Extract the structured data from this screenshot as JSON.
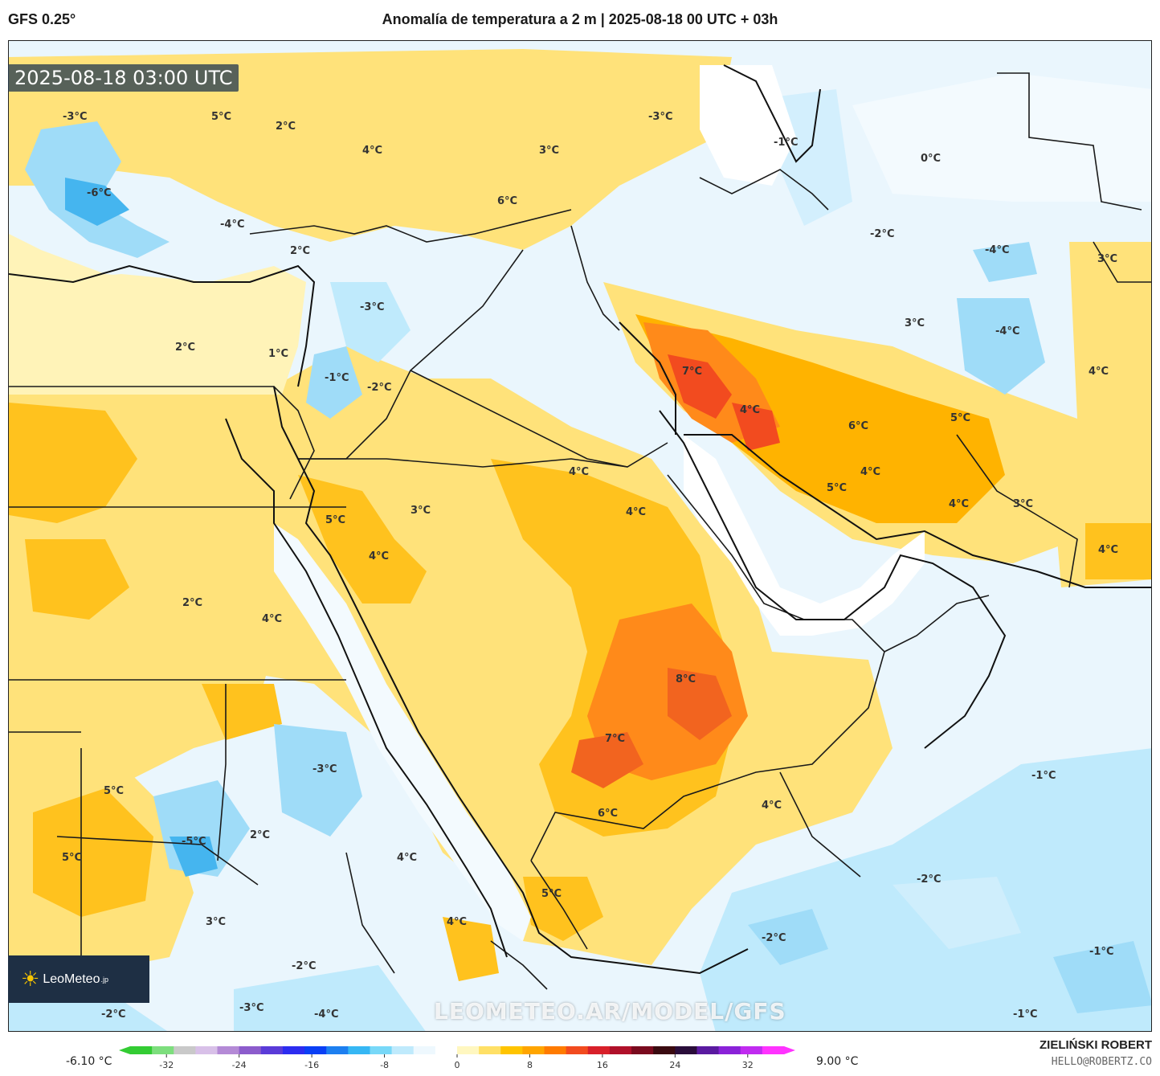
{
  "header": {
    "model": "GFS 0.25°",
    "title": "Anomalía de temperatura a 2 m | 2025-08-18 00 UTC + 03h"
  },
  "valid_time": "2025-08-18 03:00 UTC",
  "logo_text": "LeoMeteo",
  "logo_suffix": ".jp",
  "watermark": "LEOMETEO.AR/MODEL/GFS",
  "legend": {
    "min_label": "-6.10 °C",
    "max_label": "9.00 °C",
    "ticks": [
      "-32",
      "-24",
      "-16",
      "-8",
      "0",
      "8",
      "16",
      "24",
      "32"
    ],
    "tick_values": [
      -32,
      -24,
      -16,
      -8,
      0,
      8,
      16,
      24,
      32
    ],
    "range": [
      -36,
      36
    ],
    "colors": [
      "#33cc33",
      "#7dde7d",
      "#c9c9c9",
      "#d8c0e8",
      "#b48ad6",
      "#8c5ccc",
      "#5a3bd8",
      "#2c2cf0",
      "#0a3ff5",
      "#1d7ff0",
      "#36b7f4",
      "#78d8f8",
      "#bfeafc",
      "#eef8fe",
      "#ffffff",
      "#fff7c0",
      "#ffe066",
      "#ffc400",
      "#ffa500",
      "#ff7b00",
      "#f24b1f",
      "#d8202a",
      "#b0102a",
      "#7a0a1e",
      "#3a0a10",
      "#2a0d3a",
      "#5a1aa0",
      "#8a22d8",
      "#c02bf0",
      "#ff33ff"
    ]
  },
  "map_labels": [
    {
      "text": "-3°C",
      "color_hint": "cold"
    },
    {
      "text": "5°C",
      "color_hint": "warm"
    },
    {
      "text": "2°C",
      "color_hint": "warm"
    },
    {
      "text": "4°C",
      "color_hint": "warm"
    },
    {
      "text": "3°C",
      "color_hint": "warm"
    },
    {
      "text": "6°C",
      "color_hint": "warm"
    },
    {
      "text": "-6°C",
      "color_hint": "cold"
    },
    {
      "text": "-4°C",
      "color_hint": "cold"
    },
    {
      "text": "2°C",
      "color_hint": "warm"
    },
    {
      "text": "2°C",
      "color_hint": "warm"
    },
    {
      "text": "1°C",
      "color_hint": "warm"
    },
    {
      "text": "-3°C",
      "color_hint": "cold"
    },
    {
      "text": "-1°C",
      "color_hint": "cold"
    },
    {
      "text": "-2°C",
      "color_hint": "cold"
    },
    {
      "text": "-1°C",
      "color_hint": "cold"
    },
    {
      "text": "0°C",
      "color_hint": "neutral"
    },
    {
      "text": "-2°C",
      "color_hint": "cold"
    },
    {
      "text": "-4°C",
      "color_hint": "cold"
    },
    {
      "text": "-3°C",
      "color_hint": "cold"
    },
    {
      "text": "3°C",
      "color_hint": "warm"
    },
    {
      "text": "-4°C",
      "color_hint": "cold"
    },
    {
      "text": "3°C",
      "color_hint": "warm"
    },
    {
      "text": "7°C",
      "color_hint": "hot"
    },
    {
      "text": "4°C",
      "color_hint": "warm"
    },
    {
      "text": "6°C",
      "color_hint": "warm"
    },
    {
      "text": "5°C",
      "color_hint": "warm"
    },
    {
      "text": "4°C",
      "color_hint": "warm"
    },
    {
      "text": "5°C",
      "color_hint": "warm"
    },
    {
      "text": "4°C",
      "color_hint": "warm"
    },
    {
      "text": "3°C",
      "color_hint": "warm"
    },
    {
      "text": "4°C",
      "color_hint": "warm"
    },
    {
      "text": "4°C",
      "color_hint": "warm"
    },
    {
      "text": "4°C",
      "color_hint": "warm"
    },
    {
      "text": "3°C",
      "color_hint": "warm"
    },
    {
      "text": "5°C",
      "color_hint": "warm"
    },
    {
      "text": "4°C",
      "color_hint": "warm"
    },
    {
      "text": "2°C",
      "color_hint": "warm"
    },
    {
      "text": "4°C",
      "color_hint": "warm"
    },
    {
      "text": "4°C",
      "color_hint": "warm"
    },
    {
      "text": "8°C",
      "color_hint": "hot"
    },
    {
      "text": "7°C",
      "color_hint": "hot"
    },
    {
      "text": "-3°C",
      "color_hint": "cold"
    },
    {
      "text": "5°C",
      "color_hint": "warm"
    },
    {
      "text": "6°C",
      "color_hint": "warm"
    },
    {
      "text": "4°C",
      "color_hint": "warm"
    },
    {
      "text": "-1°C",
      "color_hint": "cold"
    },
    {
      "text": "2°C",
      "color_hint": "warm"
    },
    {
      "text": "-5°C",
      "color_hint": "cold"
    },
    {
      "text": "5°C",
      "color_hint": "warm"
    },
    {
      "text": "4°C",
      "color_hint": "warm"
    },
    {
      "text": "-2°C",
      "color_hint": "cold"
    },
    {
      "text": "5°C",
      "color_hint": "warm"
    },
    {
      "text": "3°C",
      "color_hint": "warm"
    },
    {
      "text": "4°C",
      "color_hint": "warm"
    },
    {
      "text": "-2°C",
      "color_hint": "cold"
    },
    {
      "text": "-2°C",
      "color_hint": "cold"
    },
    {
      "text": "-1°C",
      "color_hint": "cold"
    },
    {
      "text": "-2°C",
      "color_hint": "cold"
    },
    {
      "text": "-3°C",
      "color_hint": "cold"
    },
    {
      "text": "-4°C",
      "color_hint": "cold"
    },
    {
      "text": "-1°C",
      "color_hint": "cold"
    }
  ],
  "footer": {
    "author": "ZIELIŃSKI ROBERT",
    "email": "HELLO@ROBERTZ.CO"
  }
}
